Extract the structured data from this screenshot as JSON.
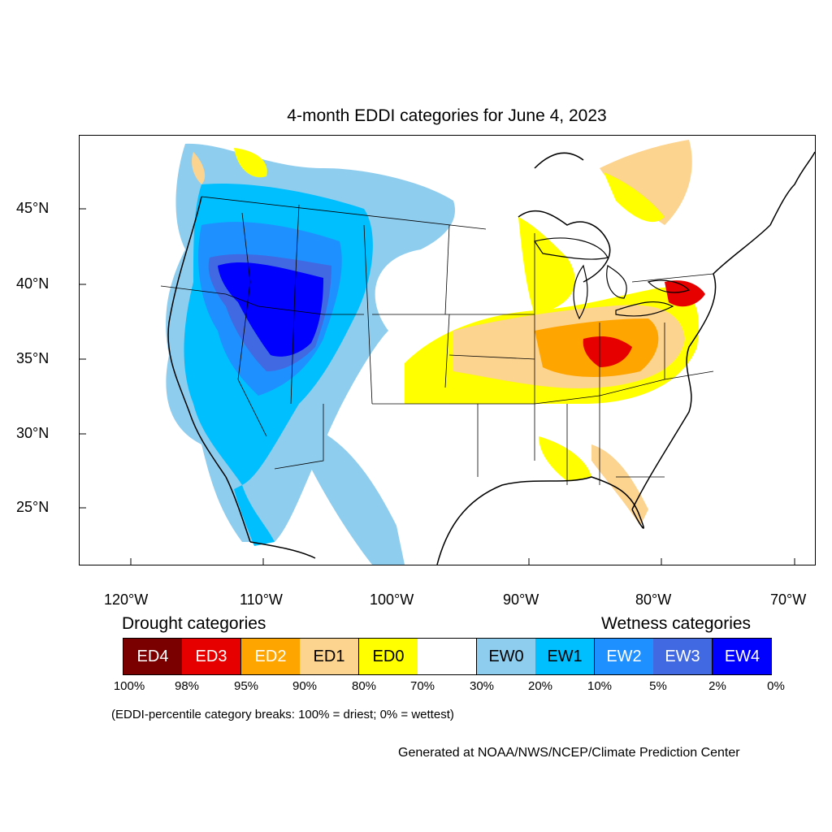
{
  "title": "4-month EDDI categories for June 4, 2023",
  "latitude_labels": [
    "45°N",
    "40°N",
    "35°N",
    "30°N",
    "25°N"
  ],
  "longitude_labels": [
    "120°W",
    "110°W",
    "100°W",
    "90°W",
    "80°W",
    "70°W"
  ],
  "legend": {
    "drought_heading": "Drought categories",
    "wetness_heading": "Wetness categories",
    "categories": [
      {
        "label": "ED4",
        "color": "#7a0000",
        "text_color": "#ffffff"
      },
      {
        "label": "ED3",
        "color": "#e60000",
        "text_color": "#ffffff"
      },
      {
        "label": "ED2",
        "color": "#ffa500",
        "text_color": "#ffffff"
      },
      {
        "label": "ED1",
        "color": "#fcd38f",
        "text_color": "#000000"
      },
      {
        "label": "ED0",
        "color": "#ffff00",
        "text_color": "#000000"
      },
      {
        "label": "",
        "color": "#ffffff",
        "text_color": "#000000"
      },
      {
        "label": "EW0",
        "color": "#8fcdef",
        "text_color": "#000000"
      },
      {
        "label": "EW1",
        "color": "#00bfff",
        "text_color": "#000000"
      },
      {
        "label": "EW2",
        "color": "#1e90ff",
        "text_color": "#ffffff"
      },
      {
        "label": "EW3",
        "color": "#4169e1",
        "text_color": "#ffffff"
      },
      {
        "label": "EW4",
        "color": "#0000ff",
        "text_color": "#ffffff"
      }
    ],
    "percent_breaks": [
      "100%",
      "98%",
      "95%",
      "90%",
      "80%",
      "70%",
      "30%",
      "20%",
      "10%",
      "5%",
      "2%",
      "0%"
    ]
  },
  "note": "(EDDI-percentile category breaks: 100% = driest; 0% = wettest)",
  "credit": "Generated at NOAA/NWS/NCEP/Climate Prediction Center"
}
